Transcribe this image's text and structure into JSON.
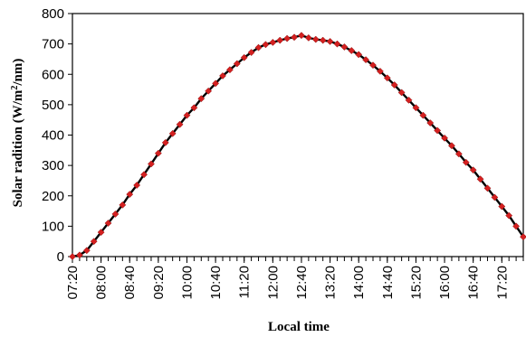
{
  "chart_data": {
    "type": "line",
    "title": "",
    "xlabel": "Local time",
    "ylabel_main": "Solar radition (W/m",
    "ylabel_sup": "2",
    "ylabel_tail": "/nm)",
    "ylim": [
      0,
      800
    ],
    "yticks": [
      0,
      100,
      200,
      300,
      400,
      500,
      600,
      700,
      800
    ],
    "xlim": [
      "07:20",
      "17:50"
    ],
    "xticks": [
      "07:20",
      "08:00",
      "08:40",
      "09:20",
      "10:00",
      "10:40",
      "11:20",
      "12:00",
      "12:40",
      "13:20",
      "14:00",
      "14:40",
      "15:20",
      "16:00",
      "16:40",
      "17:20"
    ],
    "grid": false,
    "legend": "none",
    "line_color": "#000000",
    "marker_color": "#d42020",
    "marker_shape": "diamond",
    "series": [
      {
        "x": [
          "07:20",
          "07:30",
          "07:40",
          "07:50",
          "08:00",
          "08:10",
          "08:20",
          "08:30",
          "08:40",
          "08:50",
          "09:00",
          "09:10",
          "09:20",
          "09:30",
          "09:40",
          "09:50",
          "10:00",
          "10:10",
          "10:20",
          "10:30",
          "10:40",
          "10:50",
          "11:00",
          "11:10",
          "11:20",
          "11:30",
          "11:40",
          "11:50",
          "12:00",
          "12:10",
          "12:20",
          "12:30",
          "12:40",
          "12:50",
          "13:00",
          "13:10",
          "13:20",
          "13:30",
          "13:40",
          "13:50",
          "14:00",
          "14:10",
          "14:20",
          "14:30",
          "14:40",
          "14:50",
          "15:00",
          "15:10",
          "15:20",
          "15:30",
          "15:40",
          "15:50",
          "16:00",
          "16:10",
          "16:20",
          "16:30",
          "16:40",
          "16:50",
          "17:00",
          "17:10",
          "17:20",
          "17:30",
          "17:40",
          "17:50"
        ],
        "values": [
          0,
          5,
          20,
          50,
          80,
          110,
          140,
          170,
          205,
          235,
          270,
          305,
          340,
          375,
          405,
          435,
          465,
          490,
          520,
          545,
          570,
          595,
          615,
          635,
          655,
          672,
          688,
          698,
          705,
          712,
          718,
          722,
          728,
          720,
          715,
          712,
          708,
          700,
          690,
          678,
          665,
          648,
          630,
          610,
          588,
          565,
          540,
          515,
          490,
          465,
          440,
          415,
          390,
          365,
          338,
          310,
          285,
          255,
          225,
          195,
          165,
          135,
          100,
          65
        ]
      }
    ]
  }
}
